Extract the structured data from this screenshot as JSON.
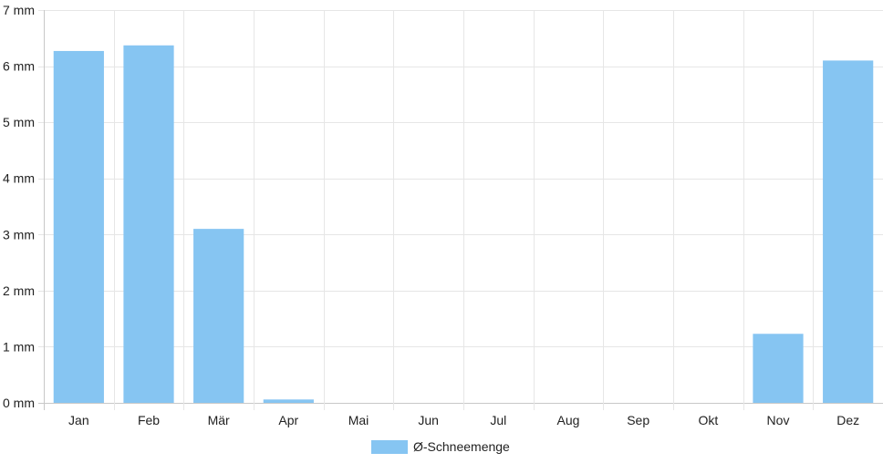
{
  "chart_data": {
    "type": "bar",
    "categories": [
      "Jan",
      "Feb",
      "Mär",
      "Apr",
      "Mai",
      "Jun",
      "Jul",
      "Aug",
      "Sep",
      "Okt",
      "Nov",
      "Dez"
    ],
    "series": [
      {
        "name": "Ø-Schneemenge",
        "values": [
          6.27,
          6.37,
          3.1,
          0.06,
          0,
          0,
          0,
          0,
          0,
          0,
          1.23,
          6.1
        ],
        "color": "#86c5f2"
      }
    ],
    "ylim": [
      0,
      7
    ],
    "y_unit": "mm",
    "ytick_labels": [
      "0 mm",
      "1 mm",
      "2 mm",
      "3 mm",
      "4 mm",
      "5 mm",
      "6 mm",
      "7 mm"
    ],
    "grid": true,
    "legend_position": "bottom"
  }
}
